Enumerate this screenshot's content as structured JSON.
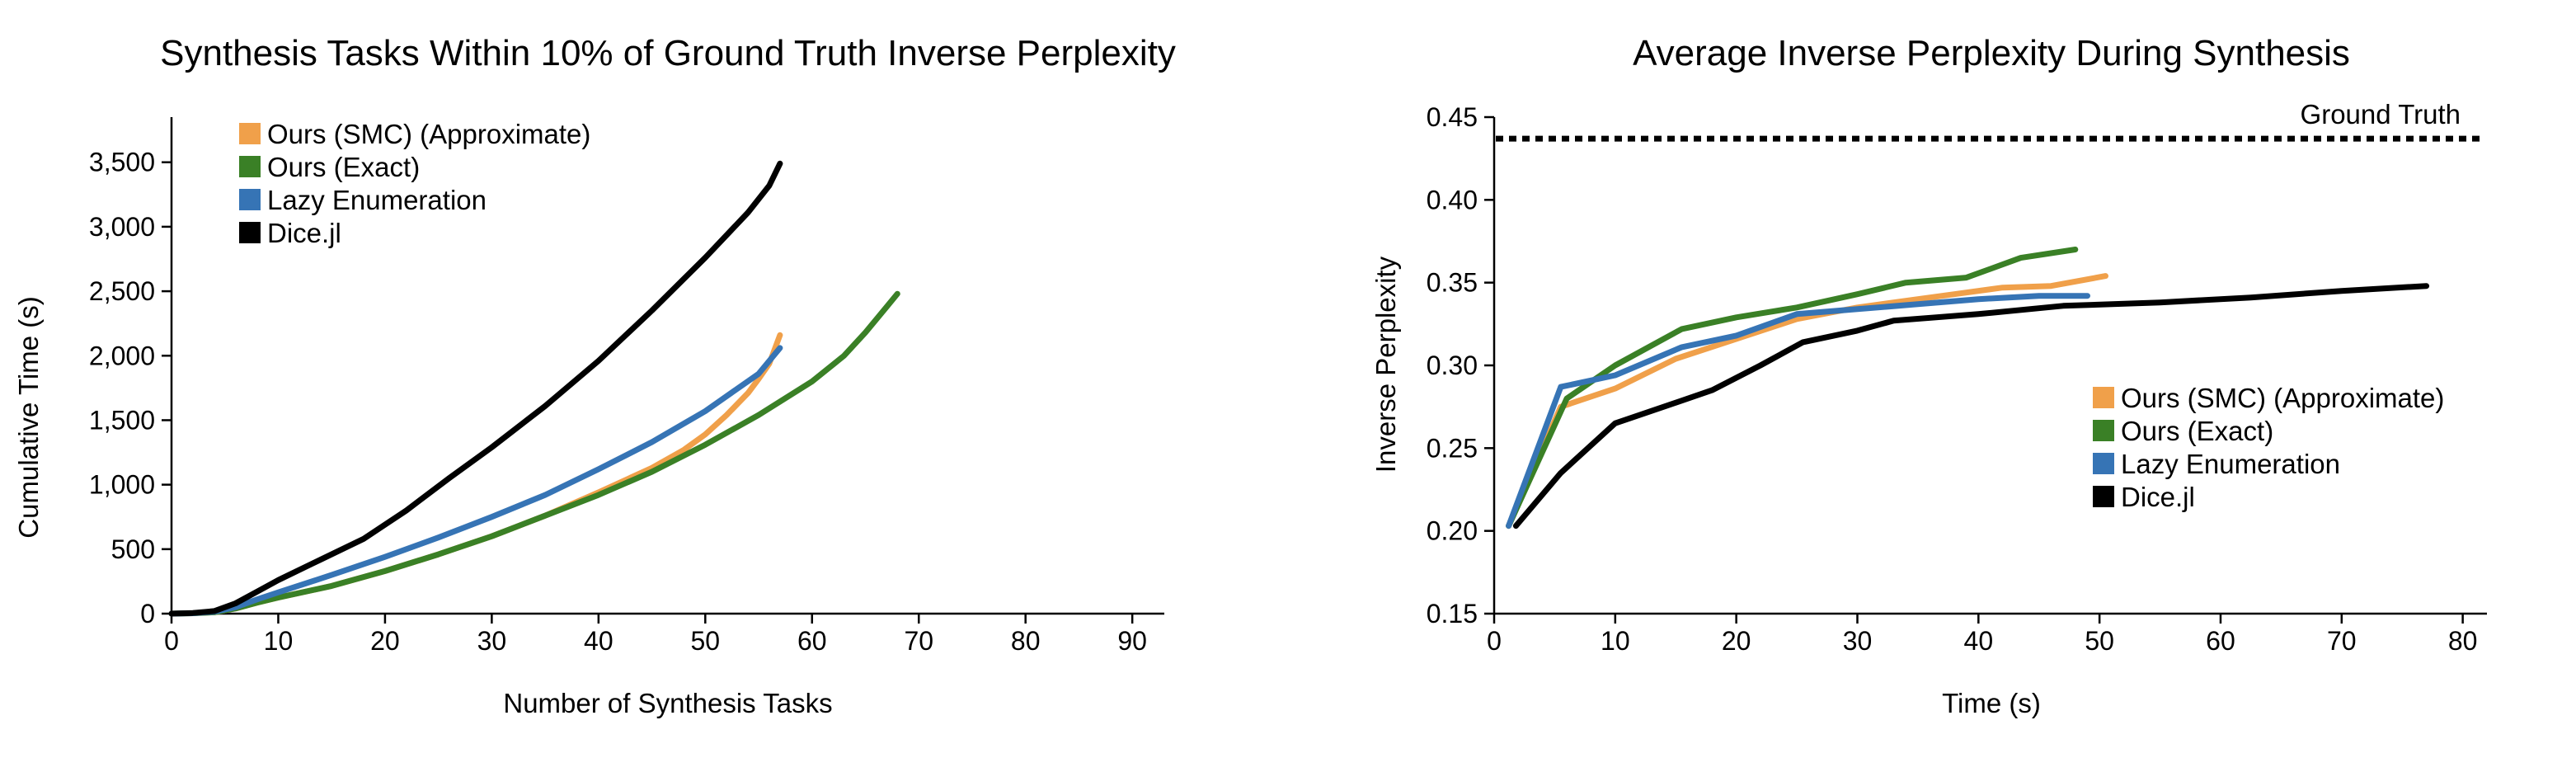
{
  "chart_data": [
    {
      "type": "line",
      "title": "Synthesis Tasks Within 10% of Ground Truth Inverse Perplexity",
      "xlabel": "Number of Synthesis Tasks",
      "ylabel": "Cumulative Time (s)",
      "xlim": [
        0,
        93
      ],
      "ylim": [
        0,
        3850
      ],
      "xticks": [
        0,
        10,
        20,
        30,
        40,
        50,
        60,
        70,
        80,
        90
      ],
      "yticks": [
        0,
        500,
        1000,
        1500,
        2000,
        2500,
        3000,
        3500
      ],
      "xtick_labels": [
        "0",
        "10",
        "20",
        "30",
        "40",
        "50",
        "60",
        "70",
        "80",
        "90"
      ],
      "ytick_labels": [
        "0",
        "500",
        "1,000",
        "1,500",
        "2,000",
        "2,500",
        "3,000",
        "3,500"
      ],
      "legend_position": "top-left",
      "grid": false,
      "series": [
        {
          "name": "Ours (SMC) (Approximate)",
          "color": "#f0a04a",
          "x": [
            0,
            2,
            4,
            6,
            8,
            10,
            15,
            20,
            25,
            30,
            35,
            40,
            45,
            48,
            50,
            52,
            54,
            55,
            56,
            57
          ],
          "y": [
            0,
            3,
            10,
            40,
            85,
            125,
            215,
            330,
            460,
            600,
            760,
            940,
            1130,
            1270,
            1390,
            1540,
            1710,
            1820,
            1940,
            2160
          ]
        },
        {
          "name": "Ours (Exact)",
          "color": "#3a8026",
          "x": [
            0,
            2,
            4,
            6,
            8,
            10,
            15,
            20,
            25,
            30,
            35,
            40,
            45,
            50,
            55,
            60,
            63,
            65,
            67,
            68
          ],
          "y": [
            0,
            3,
            10,
            40,
            85,
            125,
            215,
            330,
            460,
            600,
            760,
            920,
            1100,
            1310,
            1540,
            1800,
            2000,
            2180,
            2380,
            2480
          ]
        },
        {
          "name": "Lazy Enumeration",
          "color": "#3674b5",
          "x": [
            0,
            2,
            4,
            6,
            8,
            10,
            15,
            20,
            25,
            30,
            35,
            40,
            45,
            50,
            55,
            57
          ],
          "y": [
            0,
            3,
            15,
            50,
            110,
            165,
            300,
            440,
            590,
            750,
            920,
            1120,
            1330,
            1570,
            1860,
            2060
          ]
        },
        {
          "name": "Dice.jl",
          "color": "#000000",
          "x": [
            0,
            2,
            4,
            6,
            8,
            10,
            14,
            18,
            22,
            26,
            30,
            35,
            40,
            45,
            50,
            54,
            56,
            57
          ],
          "y": [
            0,
            5,
            20,
            80,
            170,
            260,
            420,
            580,
            800,
            1050,
            1290,
            1610,
            1960,
            2350,
            2760,
            3110,
            3320,
            3490
          ]
        }
      ]
    },
    {
      "type": "line",
      "title": "Average Inverse Perplexity During Synthesis",
      "xlabel": "Time (s)",
      "ylabel": "Inverse Perplexity",
      "xlim": [
        0,
        82
      ],
      "ylim": [
        0.15,
        0.45
      ],
      "xticks": [
        0,
        10,
        20,
        30,
        40,
        50,
        60,
        70,
        80
      ],
      "yticks": [
        0.15,
        0.2,
        0.25,
        0.3,
        0.35,
        0.4,
        0.45
      ],
      "xtick_labels": [
        "0",
        "10",
        "20",
        "30",
        "40",
        "50",
        "60",
        "70",
        "80"
      ],
      "ytick_labels": [
        "0.15",
        "0.20",
        "0.25",
        "0.30",
        "0.35",
        "0.40",
        "0.45"
      ],
      "legend_position": "lower-right",
      "grid": false,
      "reference_line": {
        "label": "Ground Truth",
        "y": 0.437,
        "color": "#000000"
      },
      "series": [
        {
          "name": "Ours (SMC) (Approximate)",
          "color": "#f0a04a",
          "x": [
            1.2,
            5.5,
            10,
            15,
            20,
            25,
            30,
            34,
            38,
            42,
            46,
            50.5
          ],
          "y": [
            0.203,
            0.275,
            0.286,
            0.304,
            0.316,
            0.328,
            0.335,
            0.339,
            0.343,
            0.347,
            0.348,
            0.354
          ]
        },
        {
          "name": "Ours (Exact)",
          "color": "#3a8026",
          "x": [
            1.2,
            6,
            10,
            15.5,
            20,
            25,
            30,
            34,
            39,
            43.5,
            48
          ],
          "y": [
            0.203,
            0.28,
            0.3,
            0.322,
            0.329,
            0.335,
            0.343,
            0.35,
            0.353,
            0.365,
            0.37
          ]
        },
        {
          "name": "Lazy Enumeration",
          "color": "#3674b5",
          "x": [
            1.2,
            5.5,
            10,
            15.5,
            20,
            25,
            30,
            35,
            40,
            45,
            49
          ],
          "y": [
            0.203,
            0.287,
            0.294,
            0.311,
            0.318,
            0.331,
            0.334,
            0.337,
            0.34,
            0.342,
            0.342
          ]
        },
        {
          "name": "Dice.jl",
          "color": "#000000",
          "x": [
            1.8,
            5.5,
            10,
            14,
            18,
            22,
            25.5,
            30,
            33,
            40,
            47,
            55,
            62.5,
            70,
            77
          ],
          "y": [
            0.203,
            0.235,
            0.265,
            0.275,
            0.285,
            0.3,
            0.314,
            0.321,
            0.327,
            0.331,
            0.336,
            0.338,
            0.341,
            0.345,
            0.348
          ]
        }
      ]
    }
  ]
}
